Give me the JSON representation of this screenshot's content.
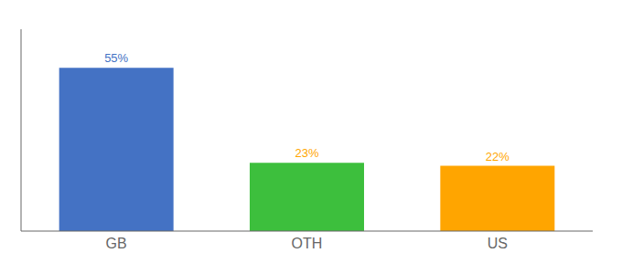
{
  "chart_data": {
    "type": "bar",
    "categories": [
      "GB",
      "OTH",
      "US"
    ],
    "values": [
      55,
      23,
      22
    ],
    "value_labels": [
      "55%",
      "23%",
      "22%"
    ],
    "colors": [
      "#4472C4",
      "#3DBF3D",
      "#FFA500"
    ],
    "label_colors": [
      "#4472C4",
      "#FFA500",
      "#FFA500"
    ],
    "ylim": [
      0,
      68
    ],
    "data_labels": true,
    "tick_labels": "x",
    "grid": false
  }
}
